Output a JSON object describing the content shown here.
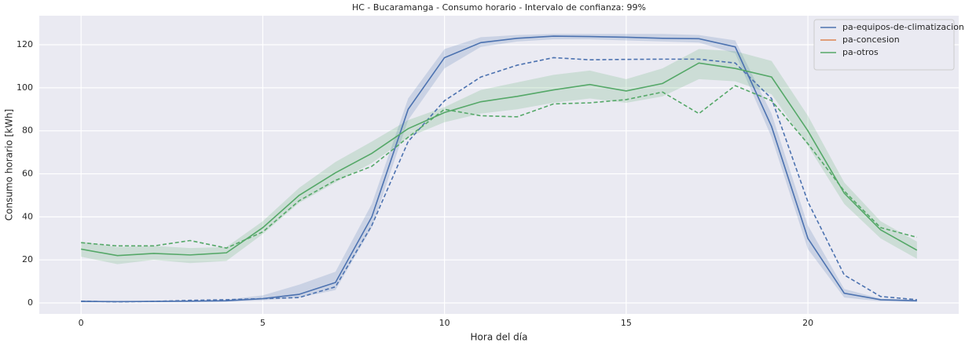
{
  "chart_data": {
    "type": "line",
    "title": "HC - Bucaramanga - Consumo horario - Intervalo de confianza: 99%",
    "xlabel": "Hora del día",
    "ylabel": "Consumo horario [kWh]",
    "x": [
      0,
      1,
      2,
      3,
      4,
      5,
      6,
      7,
      8,
      9,
      10,
      11,
      12,
      13,
      14,
      15,
      16,
      17,
      18,
      19,
      20,
      21,
      22,
      23
    ],
    "xlim": [
      -1.15,
      24.15
    ],
    "xticks": [
      0,
      5,
      10,
      15,
      20
    ],
    "ylim": [
      -5.1,
      133.5
    ],
    "yticks": [
      0,
      20,
      40,
      60,
      80,
      100,
      120
    ],
    "grid": true,
    "legend": "upper right",
    "series": [
      {
        "name": "pa-equipos-de-climatizacion",
        "color": "#4c72b0",
        "values": [
          0.7,
          0.6,
          0.7,
          0.8,
          1.0,
          2.0,
          4.0,
          9.5,
          40,
          90,
          114,
          121,
          123,
          124,
          123.8,
          123.5,
          123,
          122.8,
          119,
          82,
          30,
          4.5,
          1.5,
          1.0
        ],
        "lower": [
          0.3,
          0.3,
          0.4,
          0.5,
          0.7,
          1.2,
          2.5,
          6,
          35,
          85,
          109,
          119,
          121.5,
          122.5,
          122.5,
          122,
          121.5,
          121,
          116,
          77,
          25,
          2.5,
          0.8,
          0.5
        ],
        "upper": [
          1.2,
          1,
          1,
          1.2,
          1.5,
          3.5,
          8.5,
          14.5,
          46,
          95,
          118,
          123.5,
          124.5,
          125,
          125,
          125,
          125,
          124.5,
          122,
          88,
          36,
          6.5,
          2,
          1.5
        ],
        "dashed_values": [
          0.8,
          0.5,
          0.7,
          1.2,
          1.5,
          2,
          2.5,
          7.5,
          36,
          75,
          94,
          105,
          110.5,
          114,
          113,
          113.2,
          113.3,
          113.3,
          111.5,
          95,
          47,
          13,
          3,
          1.5
        ]
      },
      {
        "name": "pa-concesion",
        "color": "#dd8452",
        "values": [
          null,
          null,
          null,
          null,
          null,
          null,
          null,
          null,
          null,
          null,
          null,
          null,
          null,
          null,
          null,
          null,
          null,
          null,
          null,
          null,
          null,
          null,
          null,
          null
        ]
      },
      {
        "name": "pa-otros",
        "color": "#55a868",
        "values": [
          25,
          22,
          23,
          22.3,
          23.3,
          35,
          50,
          60.5,
          69.5,
          81,
          88.5,
          93.5,
          96,
          99,
          101.5,
          98.5,
          102,
          111.5,
          109,
          105,
          80,
          51,
          34,
          24.5
        ],
        "lower": [
          21.5,
          18,
          20,
          18.5,
          19.5,
          32,
          46.5,
          56,
          65,
          77,
          84,
          88,
          90,
          93,
          95,
          93,
          96,
          104,
          103,
          97,
          73,
          46,
          30,
          20.5
        ],
        "upper": [
          28.5,
          26,
          26.5,
          25.5,
          26,
          38,
          53.5,
          65.5,
          75,
          85,
          91,
          99,
          102.5,
          106,
          108,
          104,
          109,
          118,
          117,
          112.5,
          87,
          56,
          38,
          28.5
        ],
        "dashed_values": [
          28,
          26.5,
          26.5,
          29,
          25.5,
          33,
          47.5,
          57,
          63.5,
          77,
          90,
          87,
          86.5,
          92.5,
          93,
          94.5,
          98,
          88,
          101,
          94,
          74,
          52,
          35,
          30.5
        ]
      }
    ]
  }
}
